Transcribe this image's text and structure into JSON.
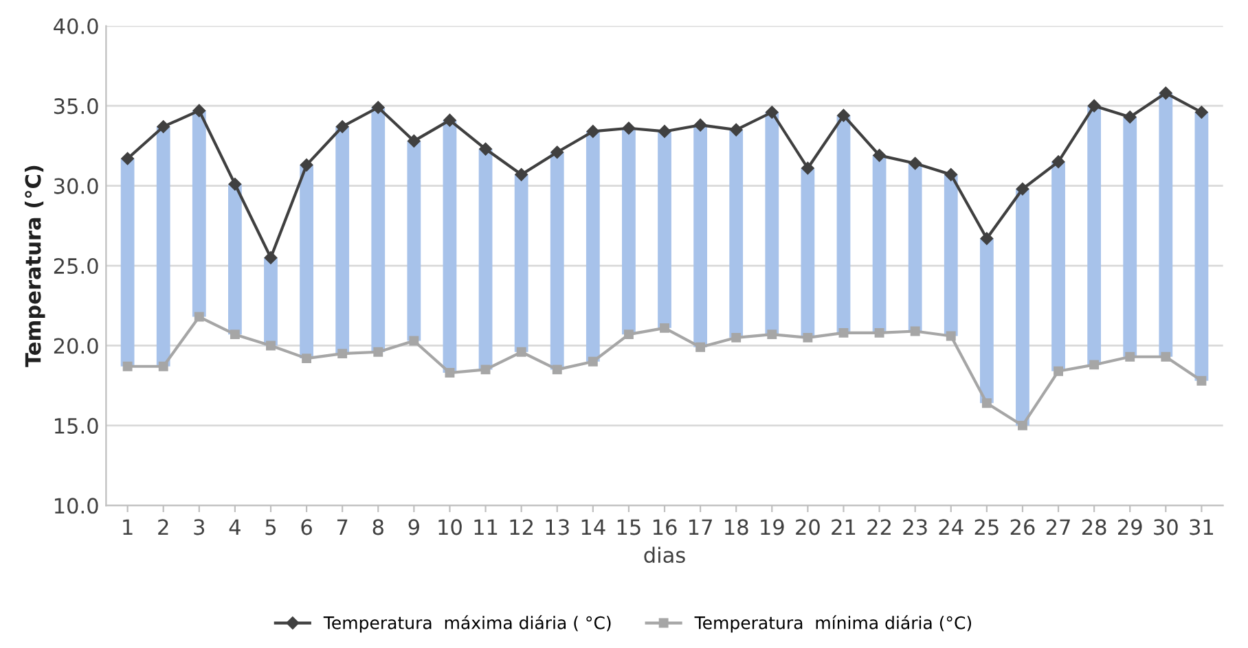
{
  "chart_data": {
    "type": "line",
    "xlabel": "dias",
    "ylabel": "Temperatura (°C)",
    "categories": [
      "1",
      "2",
      "3",
      "4",
      "5",
      "6",
      "7",
      "8",
      "9",
      "10",
      "11",
      "12",
      "13",
      "14",
      "15",
      "16",
      "17",
      "18",
      "19",
      "20",
      "21",
      "22",
      "23",
      "24",
      "25",
      "26",
      "27",
      "28",
      "29",
      "30",
      "31"
    ],
    "series": [
      {
        "type": "bar",
        "color": "#a7c2ea",
        "base": [
          18.7,
          18.7,
          21.8,
          20.7,
          20.0,
          19.2,
          19.5,
          19.6,
          20.3,
          18.3,
          18.5,
          19.6,
          18.5,
          19.0,
          20.7,
          21.1,
          19.9,
          20.5,
          20.7,
          20.5,
          20.8,
          20.8,
          20.9,
          20.6,
          16.4,
          15.0,
          18.4,
          18.8,
          19.3,
          19.3,
          17.8
        ],
        "values": [
          13.0,
          15.0,
          12.9,
          9.4,
          5.5,
          12.1,
          14.2,
          15.3,
          12.5,
          15.8,
          13.8,
          11.1,
          13.6,
          14.4,
          12.9,
          12.3,
          13.9,
          13.0,
          13.9,
          10.6,
          13.6,
          11.1,
          10.5,
          10.1,
          10.3,
          14.8,
          13.1,
          16.2,
          15.0,
          16.5,
          16.8
        ]
      },
      {
        "name": "Temperatura  máxima diária ( °C)",
        "color": "#404040",
        "marker": "diamond",
        "values": [
          31.7,
          33.7,
          34.7,
          30.1,
          25.5,
          31.3,
          33.7,
          34.9,
          32.8,
          34.1,
          32.3,
          30.7,
          32.1,
          33.4,
          33.6,
          33.4,
          33.8,
          33.5,
          34.6,
          31.1,
          34.4,
          31.9,
          31.4,
          30.7,
          26.7,
          29.8,
          31.5,
          35.0,
          34.3,
          35.8,
          34.6
        ]
      },
      {
        "name": "Temperatura  mínima diária (°C)",
        "color": "#a6a6a6",
        "marker": "square",
        "values": [
          18.7,
          18.7,
          21.8,
          20.7,
          20.0,
          19.2,
          19.5,
          19.6,
          20.3,
          18.3,
          18.5,
          19.6,
          18.5,
          19.0,
          20.7,
          21.1,
          19.9,
          20.5,
          20.7,
          20.5,
          20.8,
          20.8,
          20.9,
          20.6,
          16.4,
          15.0,
          18.4,
          18.8,
          19.3,
          19.3,
          17.8
        ]
      }
    ],
    "ylim": [
      10,
      40
    ],
    "yticks": [
      {
        "value": 10,
        "label": "10.0"
      },
      {
        "value": 15,
        "label": "15.0"
      },
      {
        "value": 20,
        "label": "20.0"
      },
      {
        "value": 25,
        "label": "25.0"
      },
      {
        "value": 30,
        "label": "30.0"
      },
      {
        "value": 35,
        "label": "35.0"
      },
      {
        "value": 40,
        "label": "40.0"
      }
    ],
    "grid": "y",
    "legend": "bottom"
  }
}
